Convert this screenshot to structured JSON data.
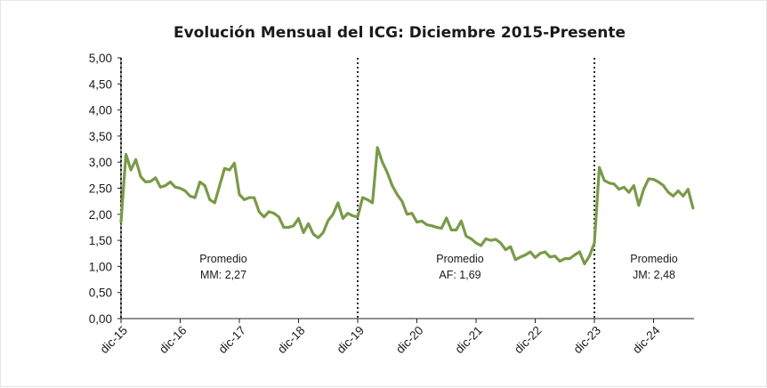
{
  "chart_data": {
    "type": "line",
    "title": "Evolución Mensual del ICG: Diciembre 2015-Presente",
    "xlabel": "",
    "ylabel": "",
    "ylim": [
      0,
      5
    ],
    "y_ticks": [
      "0,00",
      "0,50",
      "1,00",
      "1,50",
      "2,00",
      "2,50",
      "3,00",
      "3,50",
      "4,00",
      "4,50",
      "5,00"
    ],
    "x_ticks": [
      "dic-15",
      "dic-16",
      "dic-17",
      "dic-18",
      "dic-19",
      "dic-20",
      "dic-21",
      "dic-22",
      "dic-23",
      "dic-24"
    ],
    "grid": false,
    "line_color": "#7a9a48",
    "divider_months": [
      "2015-12",
      "2019-12",
      "2023-12"
    ],
    "annotations": [
      {
        "label": "Promedio",
        "value": "MM: 2,27",
        "period": "2015-12 a 2019-12"
      },
      {
        "label": "Promedio",
        "value": "AF: 1,69",
        "period": "2019-12 a 2023-12"
      },
      {
        "label": "Promedio",
        "value": "JM: 2,48",
        "period": "2023-12 en adelante"
      }
    ],
    "series": [
      {
        "start": "2015-12",
        "values": [
          1.85,
          3.15,
          2.85,
          3.05,
          2.72,
          2.62,
          2.63,
          2.7,
          2.52,
          2.55,
          2.62,
          2.52,
          2.5,
          2.45,
          2.35,
          2.32,
          2.62,
          2.55,
          2.28,
          2.22,
          2.55,
          2.88,
          2.85,
          2.98,
          2.38,
          2.28,
          2.32,
          2.32,
          2.05,
          1.95,
          2.05,
          2.02,
          1.95,
          1.75,
          1.75,
          1.78,
          1.92,
          1.65,
          1.82,
          1.62,
          1.55,
          1.65,
          1.88,
          2.0,
          2.22,
          1.92,
          2.02,
          1.97,
          1.95,
          2.32,
          2.28,
          2.22,
          3.28,
          3.0,
          2.8,
          2.55,
          2.38,
          2.25,
          2.0,
          2.02,
          1.85,
          1.87,
          1.8,
          1.78,
          1.75,
          1.73,
          1.93,
          1.7,
          1.7,
          1.87,
          1.58,
          1.53,
          1.45,
          1.4,
          1.53,
          1.5,
          1.52,
          1.45,
          1.32,
          1.38,
          1.13,
          1.18,
          1.22,
          1.28,
          1.17,
          1.25,
          1.28,
          1.18,
          1.2,
          1.1,
          1.15,
          1.15,
          1.22,
          1.28,
          1.05,
          1.2,
          1.45,
          2.9,
          2.65,
          2.6,
          2.58,
          2.48,
          2.52,
          2.42,
          2.55,
          2.17,
          2.48,
          2.68,
          2.67,
          2.62,
          2.55,
          2.42,
          2.35,
          2.45,
          2.35,
          2.48,
          2.12
        ]
      }
    ]
  }
}
